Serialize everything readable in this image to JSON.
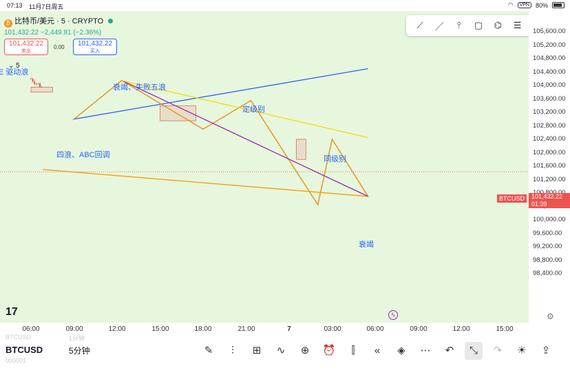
{
  "status_bar": {
    "time": "07:13",
    "date": "11月7日周五",
    "vpn": "VPN",
    "battery": "80%"
  },
  "legend": {
    "coin_glyph": "₿",
    "title": "比特币/美元 · 5 · CRYPTO",
    "last": "101,432.22",
    "change": "−2,449.81 (−2.36%)"
  },
  "trade": {
    "sell_price": "101,432.22",
    "sell_label": "卖出",
    "spread": "0.00",
    "buy_price": "101,432.22",
    "buy_label": "买入"
  },
  "collapse_label": "5",
  "annotations": {
    "top_left": "E 驱动浪",
    "peak": "衰竭、失败五浪",
    "abc": "四浪、ABC回调",
    "dingji": "定级别",
    "tongji": "同级别",
    "bottom": "衰竭"
  },
  "price_axis": {
    "ticks": [
      "105,600.00",
      "105,200.00",
      "104,800.00",
      "104,400.00",
      "104,000.00",
      "103,600.00",
      "103,200.00",
      "102,800.00",
      "102,400.00",
      "102,000.00",
      "101,600.00",
      "101,200.00",
      "100,800.00",
      "100,400.00",
      "100,000.00",
      "99,600.00",
      "99,200.00",
      "98,800.00",
      "98,400.00"
    ],
    "current_price": "101,432.22",
    "countdown": "01:39",
    "symbol_tag": "BTCUSD"
  },
  "time_axis": [
    "06:00",
    "09:00",
    "12:00",
    "15:00",
    "18:00",
    "21:00",
    "7",
    "03:00",
    "06:00",
    "09:00",
    "12:00",
    "15:00"
  ],
  "bottom_bar": {
    "symbol": "BTCUSD",
    "interval": "5分钟",
    "ghost_top_sym": "BTCUSD",
    "ghost_top_int": "1分钟",
    "ghost_bottom": "000001"
  },
  "icons": {
    "tools": [
      "brush-icon",
      "chart-style-icon",
      "grid-icon",
      "indicator-icon",
      "add-icon",
      "alarm-icon",
      "candle-icon",
      "replay-icon",
      "layers-icon",
      "more-icon",
      "undo-icon",
      "collapse-icon",
      "redo-icon",
      "bulb-icon",
      "share-icon"
    ],
    "floating": [
      "trend-line-icon",
      "line-icon",
      "vertical-line-icon",
      "rectangle-icon",
      "pattern-icon",
      "fib-icon",
      "text-icon"
    ]
  },
  "colors": {
    "up": "#26a69a",
    "down": "#ef5350",
    "background": "#e6f7dd",
    "annotation": "#2962ff",
    "blue_wave": "#2962ff",
    "orange_wave": "#ff9800",
    "purple_line": "#9c27b0",
    "yellow_line": "#ffd600"
  },
  "chart_data": {
    "type": "candlestick",
    "symbol": "BTCUSD",
    "interval": "5",
    "ylim": [
      98200,
      105800
    ],
    "x_ticks": [
      "06:00",
      "09:00",
      "12:00",
      "15:00",
      "18:00",
      "21:00",
      "7",
      "03:00",
      "06:00",
      "09:00",
      "12:00",
      "15:00"
    ],
    "close_path_times": [
      "06:00",
      "07:30",
      "08:30",
      "09:00",
      "09:45",
      "10:30",
      "11:00",
      "12:00",
      "12:40",
      "13:30",
      "14:00",
      "15:00",
      "15:30",
      "16:30",
      "17:30",
      "18:00",
      "18:30",
      "19:30",
      "20:30",
      "21:00",
      "21:20",
      "22:00",
      "23:00",
      "00:00",
      "01:00",
      "01:45",
      "02:30",
      "03:00",
      "03:40",
      "04:30",
      "05:10",
      "05:50",
      "06:20",
      "06:50"
    ],
    "close_path": [
      104200,
      103700,
      103050,
      103500,
      102650,
      103200,
      103700,
      103900,
      104150,
      103800,
      103500,
      103100,
      103500,
      103200,
      103000,
      102800,
      103100,
      103300,
      103050,
      103450,
      103600,
      102600,
      102400,
      101700,
      101200,
      100500,
      101000,
      102300,
      101600,
      101150,
      100900,
      100700,
      101000,
      101400
    ],
    "current": 101432.22,
    "drawn_lines": [
      {
        "name": "blue-wave",
        "points": [
          [
            "05:30",
            104500
          ],
          [
            "09:00",
            103000
          ],
          [
            "12:20",
            104150
          ],
          [
            "18:00",
            102700
          ],
          [
            "21:20",
            103550
          ],
          [
            "02:00",
            100450
          ],
          [
            "03:00",
            102400
          ],
          [
            "05:30",
            100700
          ]
        ]
      },
      {
        "name": "orange-wave",
        "points": [
          [
            "09:00",
            103000
          ],
          [
            "12:20",
            104150
          ],
          [
            "18:00",
            102700
          ],
          [
            "21:20",
            103550
          ],
          [
            "02:00",
            100450
          ],
          [
            "03:00",
            102400
          ],
          [
            "05:30",
            100700
          ],
          [
            "06:50",
            101500
          ]
        ]
      },
      {
        "name": "purple-channel",
        "points": [
          [
            "12:20",
            104150
          ],
          [
            "05:30",
            100700
          ]
        ]
      },
      {
        "name": "yellow-trend",
        "points": [
          [
            "05:30",
            102450
          ],
          [
            "12:20",
            104150
          ]
        ]
      }
    ],
    "boxes": [
      {
        "from": "06:00",
        "to": "07:30",
        "low": 103800,
        "high": 103950
      },
      {
        "from": "15:00",
        "to": "17:30",
        "low": 102950,
        "high": 103400
      },
      {
        "from": "00:30",
        "to": "01:10",
        "low": 101800,
        "high": 102400
      }
    ]
  }
}
